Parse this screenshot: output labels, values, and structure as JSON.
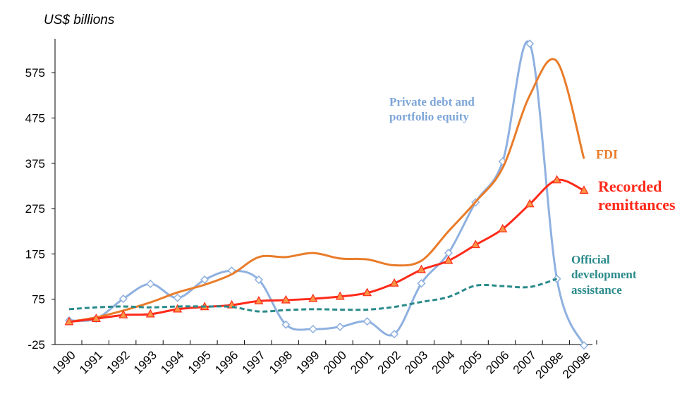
{
  "chart_data": {
    "type": "line",
    "y_label": "US$ billions",
    "categories": [
      "1990",
      "1991",
      "1992",
      "1993",
      "1994",
      "1995",
      "1996",
      "1997",
      "1998",
      "1999",
      "2000",
      "2001",
      "2002",
      "2003",
      "2004",
      "2005",
      "2006",
      "2007",
      "2008e",
      "2009e"
    ],
    "ylim": [
      -25,
      650
    ],
    "yticks": [
      -25,
      75,
      175,
      275,
      375,
      475,
      575
    ],
    "series": [
      {
        "name": "Private debt and portfolio equity",
        "color": "#8fb1e0",
        "marker": "diamond",
        "values": [
          28,
          32,
          76,
          109,
          78,
          118,
          138,
          118,
          19,
          9,
          14,
          26,
          -2,
          110,
          177,
          289,
          379,
          639,
          120,
          -27
        ]
      },
      {
        "name": "FDI",
        "color": "#e97c2a",
        "marker": "none",
        "values": [
          25,
          35,
          50,
          68,
          90,
          107,
          130,
          168,
          168,
          177,
          165,
          163,
          150,
          160,
          225,
          290,
          365,
          525,
          600,
          385
        ]
      },
      {
        "name": "Recorded remittances",
        "color": "#ff2a1a",
        "marker": "triangle",
        "values": [
          25,
          32,
          40,
          42,
          53,
          58,
          62,
          71,
          73,
          76,
          81,
          89,
          110,
          140,
          160,
          195,
          230,
          285,
          338,
          315
        ]
      },
      {
        "name": "Official development assistance",
        "color": "#2a8a8a",
        "marker": "none",
        "dashed": true,
        "values": [
          53,
          57,
          59,
          57,
          59,
          59,
          58,
          48,
          51,
          53,
          52,
          52,
          58,
          69,
          80,
          105,
          104,
          102,
          120,
          null
        ]
      }
    ]
  }
}
